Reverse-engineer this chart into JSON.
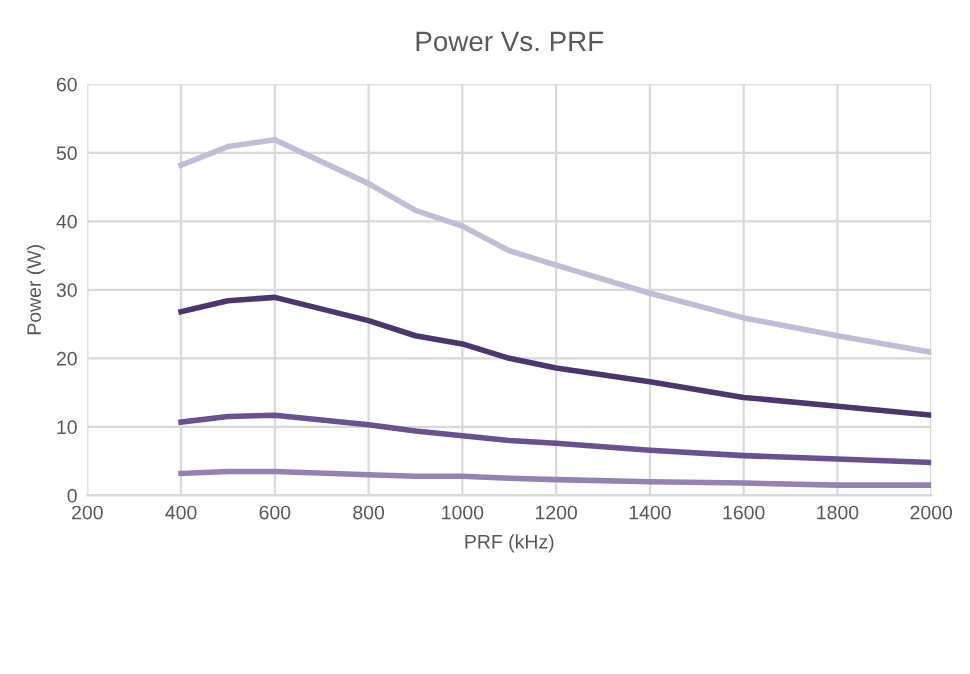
{
  "chart_data": {
    "type": "line",
    "title": "Power Vs. PRF",
    "xlabel": "PRF (kHz)",
    "ylabel": "Power (W)",
    "x": [
      400,
      500,
      600,
      800,
      900,
      1000,
      1100,
      1200,
      1400,
      1600,
      1800,
      2000
    ],
    "series": [
      {
        "color": "#9582b3",
        "values": [
          3.2,
          3.5,
          3.5,
          3.0,
          2.8,
          2.8,
          2.5,
          2.3,
          2.0,
          1.8,
          1.5,
          1.5
        ]
      },
      {
        "color": "#4e3570",
        "values": [
          26.8,
          28.4,
          28.9,
          25.5,
          23.3,
          22.1,
          20.0,
          18.6,
          16.6,
          14.3,
          13.0,
          11.7
        ]
      },
      {
        "color": "#6c5190",
        "values": [
          10.7,
          11.5,
          11.7,
          10.3,
          9.4,
          8.7,
          8.0,
          7.6,
          6.6,
          5.8,
          5.3,
          4.8
        ]
      },
      {
        "color": "#c4bbd8",
        "values": [
          48.2,
          50.9,
          51.9,
          45.5,
          41.6,
          39.3,
          35.7,
          33.6,
          29.5,
          25.9,
          23.3,
          20.9
        ]
      }
    ],
    "xlim": [
      200,
      2000
    ],
    "xticks": [
      200,
      400,
      600,
      800,
      1000,
      1200,
      1400,
      1600,
      1800,
      2000
    ],
    "ylim": [
      0,
      60
    ],
    "yticks": [
      0,
      10,
      20,
      30,
      40,
      50,
      60
    ],
    "grid": true,
    "marker": "none",
    "line_style": "solid"
  }
}
